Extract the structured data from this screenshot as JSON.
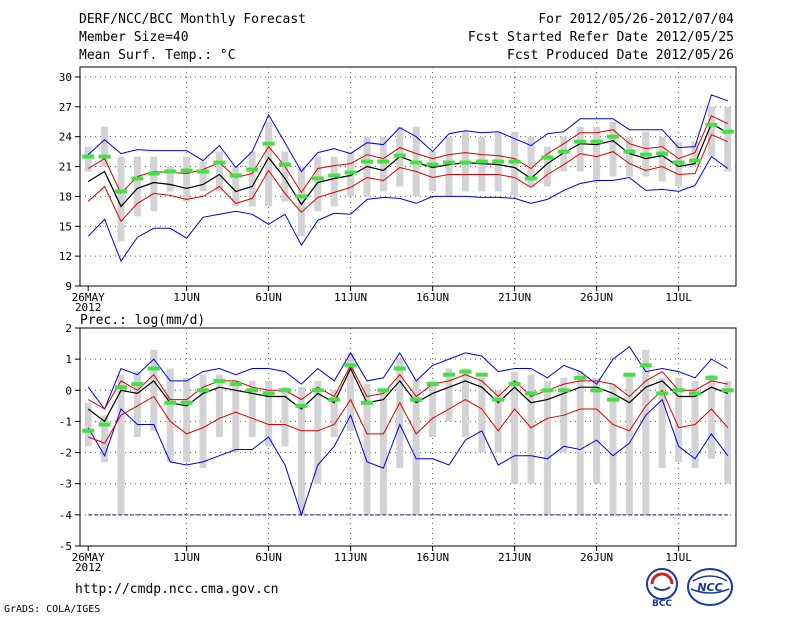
{
  "header": {
    "title": "DERF/NCC/BCC Monthly Forecast",
    "member_size": "Member Size=40",
    "variable": "Mean Surf. Temp.: °C",
    "period": "For 2012/05/26-2012/07/04",
    "started": "Fcst Started Refer Date 2012/05/25",
    "produced": "Fcst Produced Date 2012/05/26"
  },
  "footer": {
    "url": "http://cmdp.ncc.cma.gov.cn",
    "grads": "GrADS: COLA/IGES",
    "logo_left_text": "BCC",
    "logo_right_text": "NCC"
  },
  "colors": {
    "box": "#d3d3d6",
    "obs": "#44e044",
    "mean": "#000000",
    "std": "#dd0000",
    "range": "#0000ee",
    "grid": "#555555"
  },
  "chart_data": [
    {
      "type": "line",
      "title": "Mean Surf. Temp.: °C",
      "ylim": [
        9,
        31
      ],
      "yticks": [
        9,
        12,
        15,
        18,
        21,
        24,
        27,
        30
      ],
      "xlim": [
        0.5,
        40.5
      ],
      "x_tick_positions": [
        1,
        7,
        12,
        17,
        22,
        27,
        32,
        37
      ],
      "x_tick_labels": [
        "26MAY",
        "1JUN",
        "6JUN",
        "11JUN",
        "16JUN",
        "21JUN",
        "26JUN",
        "1JUL"
      ],
      "x_year_label": "2012",
      "series": [
        {
          "name": "mean",
          "values": [
            19.5,
            20.5,
            17,
            18.8,
            19.4,
            19.2,
            18.8,
            19.2,
            20.2,
            18.5,
            19,
            21.9,
            19.8,
            17.2,
            19.4,
            19.8,
            20.1,
            21,
            20.6,
            22,
            21.4,
            20.9,
            21.2,
            21.4,
            21.3,
            21.2,
            20.9,
            19.8,
            21.3,
            22.4,
            23.3,
            23.2,
            23.6,
            22.3,
            21.8,
            22.1,
            21,
            21.3,
            25.3,
            24.4
          ]
        },
        {
          "name": "mean_plus_std",
          "values": [
            20.8,
            21.8,
            18.3,
            20,
            20.5,
            20.4,
            20.3,
            20.7,
            21.4,
            19.9,
            20.3,
            23,
            21,
            18.4,
            20.8,
            21.1,
            21.3,
            22.2,
            21.8,
            22.9,
            22.3,
            21.8,
            22.2,
            22.4,
            22.2,
            22.1,
            21.8,
            20.8,
            22.3,
            23.3,
            24.4,
            24.4,
            24.7,
            23.3,
            22.8,
            23,
            21.8,
            22.4,
            26.1,
            25.3
          ]
        },
        {
          "name": "mean_minus_std",
          "values": [
            17.5,
            19,
            15.5,
            17.3,
            18.3,
            18.1,
            17.7,
            18,
            19,
            17.3,
            17.8,
            20.6,
            18.3,
            16.4,
            17.9,
            18.4,
            18.9,
            19.9,
            19.6,
            20.9,
            20.5,
            19.9,
            20.2,
            20.2,
            20.2,
            20.2,
            19.9,
            18.9,
            20.2,
            21.2,
            22.3,
            22,
            22.5,
            21.3,
            20.6,
            21,
            20.2,
            20.3,
            24.2,
            23.5
          ]
        },
        {
          "name": "max",
          "values": [
            22.2,
            23.7,
            22.3,
            22.7,
            22.6,
            22.6,
            22.6,
            21.6,
            23.1,
            20.9,
            22.5,
            26.2,
            23.4,
            20.5,
            22.4,
            22.8,
            22.3,
            23.4,
            23.2,
            24.9,
            24,
            22.5,
            24.3,
            24.6,
            24.4,
            24.5,
            23.8,
            23.1,
            24.3,
            24.5,
            25.8,
            25.8,
            25.8,
            24.7,
            24.7,
            24.7,
            22.9,
            23,
            28.2,
            27.6
          ]
        },
        {
          "name": "min",
          "values": [
            14,
            15.7,
            11.5,
            13.9,
            14.8,
            14.8,
            13.8,
            15.9,
            16.2,
            16.5,
            16.2,
            15.2,
            16.2,
            13.1,
            15.6,
            16.3,
            16.2,
            17.7,
            17.9,
            17.8,
            17.3,
            18,
            18,
            18,
            17.9,
            17.9,
            17.8,
            17.3,
            17.7,
            18.6,
            19.3,
            19.6,
            19.6,
            19.9,
            18.6,
            18.7,
            18.5,
            19.1,
            22,
            20.8
          ]
        },
        {
          "name": "observed",
          "values": [
            22,
            22,
            18.5,
            19.8,
            20.3,
            20.5,
            20.6,
            20.5,
            21.4,
            20.1,
            20.7,
            23.3,
            21.2,
            18,
            19.8,
            20.1,
            20.4,
            21.5,
            21.5,
            22.1,
            21.4,
            21.2,
            21.4,
            21.4,
            21.5,
            21.5,
            21.5,
            19.8,
            21.9,
            22.5,
            23.5,
            23.5,
            24,
            22.5,
            22.2,
            22.3,
            21.4,
            21.6,
            25.2,
            24.5
          ]
        }
      ],
      "box_ranges": [
        [
          20.5,
          23
        ],
        [
          21,
          25
        ],
        [
          13.5,
          22
        ],
        [
          16,
          22
        ],
        [
          16.5,
          22
        ],
        [
          18.5,
          21
        ],
        [
          17.5,
          22
        ],
        [
          18.5,
          21.5
        ],
        [
          18.5,
          22.5
        ],
        [
          17,
          21
        ],
        [
          17,
          22.5
        ],
        [
          17,
          25.5
        ],
        [
          17.5,
          22.5
        ],
        [
          14,
          21
        ],
        [
          16.5,
          22
        ],
        [
          17,
          22
        ],
        [
          18,
          22.5
        ],
        [
          18,
          24
        ],
        [
          18.5,
          24
        ],
        [
          19,
          25
        ],
        [
          18,
          25
        ],
        [
          18.5,
          22.5
        ],
        [
          18,
          24
        ],
        [
          18.5,
          24.5
        ],
        [
          18.5,
          24
        ],
        [
          18.5,
          24.5
        ],
        [
          18,
          24.5
        ],
        [
          19,
          24
        ],
        [
          19,
          23
        ],
        [
          20.5,
          24
        ],
        [
          20.5,
          25
        ],
        [
          19.5,
          25
        ],
        [
          20,
          25.5
        ],
        [
          20,
          24
        ],
        [
          20,
          24.5
        ],
        [
          19.5,
          24
        ],
        [
          19,
          23.5
        ],
        [
          21,
          23.5
        ],
        [
          22,
          27
        ],
        [
          20.5,
          27
        ]
      ]
    },
    {
      "type": "line",
      "title": "Prec.: log(mm/d)",
      "ylim": [
        -5,
        2
      ],
      "yticks": [
        -5,
        -4,
        -3,
        -2,
        -1,
        0,
        1,
        2
      ],
      "xlim": [
        0.5,
        40.5
      ],
      "x_tick_positions": [
        1,
        7,
        12,
        17,
        22,
        27,
        32,
        37
      ],
      "x_tick_labels": [
        "26MAY",
        "1JUN",
        "6JUN",
        "11JUN",
        "16JUN",
        "21JUN",
        "26JUN",
        "1JUL"
      ],
      "x_year_label": "2012",
      "reference_line": -4,
      "series": [
        {
          "name": "mean",
          "values": [
            -0.6,
            -1,
            0,
            -0.1,
            0.3,
            -0.4,
            -0.5,
            -0.1,
            0.1,
            0,
            -0.1,
            -0.2,
            -0.2,
            -0.6,
            -0.1,
            -0.4,
            0.7,
            -0.4,
            -0.3,
            0.3,
            -0.4,
            -0.1,
            0.1,
            0.3,
            0.1,
            -0.4,
            0.1,
            -0.4,
            -0.3,
            -0.1,
            0.1,
            0.1,
            -0.1,
            -0.4,
            0.1,
            0.3,
            -0.2,
            -0.2,
            0.1,
            -0.1
          ]
        },
        {
          "name": "mean_plus_std",
          "values": [
            -0.3,
            -0.6,
            0.3,
            0,
            0.5,
            -0.3,
            -0.3,
            0.1,
            0.3,
            0.3,
            0.1,
            0,
            0,
            -0.3,
            0.1,
            -0.2,
            0.8,
            -0.2,
            -0.1,
            0.5,
            -0.2,
            0.2,
            0.3,
            0.5,
            0.3,
            -0.2,
            0.3,
            -0.2,
            0,
            0.2,
            0.3,
            0.3,
            0.2,
            -0.2,
            0.3,
            0.6,
            0,
            0,
            0.3,
            0.2
          ]
        },
        {
          "name": "mean_minus_std",
          "values": [
            -1.5,
            -1.7,
            -0.8,
            -0.5,
            -0.2,
            -1,
            -1.4,
            -1.2,
            -0.9,
            -0.7,
            -0.9,
            -1.1,
            -1.1,
            -1.3,
            -1.3,
            -1.1,
            -0.3,
            -1.4,
            -1.4,
            -0.4,
            -1.4,
            -0.9,
            -0.6,
            -0.3,
            -0.6,
            -1.3,
            -0.6,
            -1.2,
            -0.9,
            -0.8,
            -0.6,
            -0.6,
            -1.1,
            -1.3,
            -0.5,
            0,
            -1.2,
            -1.1,
            -0.6,
            -1.2
          ]
        },
        {
          "name": "max",
          "values": [
            0.1,
            -0.6,
            0.7,
            0.5,
            1,
            0.3,
            0.3,
            0.6,
            0.7,
            0.5,
            0.7,
            0.7,
            0.6,
            0.2,
            0.7,
            0.3,
            1.2,
            0.3,
            0.4,
            1.2,
            0.3,
            0.8,
            1,
            1.2,
            1.1,
            0.6,
            0.7,
            0.7,
            0.4,
            0.8,
            0.6,
            0.2,
            1,
            1.4,
            0.6,
            0.7,
            0.6,
            0.4,
            1,
            0.7
          ]
        },
        {
          "name": "min",
          "values": [
            -1.2,
            -2.1,
            -0.6,
            -1.1,
            -1.1,
            -2.3,
            -2.4,
            -2.3,
            -2.1,
            -1.9,
            -1.9,
            -1.5,
            -2.4,
            -4,
            -2.4,
            -1.8,
            -0.8,
            -2.3,
            -2.5,
            -1.1,
            -2.2,
            -2.2,
            -2.4,
            -1.6,
            -1.3,
            -2.4,
            -2.1,
            -2.1,
            -2.2,
            -1.8,
            -1.9,
            -1.6,
            -2.1,
            -1.7,
            -0.8,
            -0.3,
            -1.8,
            -2.2,
            -1.4,
            -2.1
          ]
        },
        {
          "name": "observed",
          "values": [
            -1.3,
            -1.1,
            0.1,
            0.2,
            0.7,
            -0.4,
            -0.4,
            0,
            0.3,
            0.2,
            0,
            -0.1,
            0,
            -0.5,
            0,
            -0.3,
            0.8,
            -0.4,
            0,
            0.7,
            -0.3,
            0.2,
            0.5,
            0.6,
            0.5,
            -0.3,
            0.2,
            -0.1,
            0,
            0,
            0.4,
            0,
            -0.3,
            0.5,
            0.8,
            -0.1,
            0,
            -0.1,
            0.4,
            0
          ]
        }
      ],
      "box_ranges": [
        [
          -1.8,
          -0.4
        ],
        [
          -2.3,
          -0.8
        ],
        [
          -4,
          0.5
        ],
        [
          -1.5,
          0.6
        ],
        [
          -1.3,
          1.3
        ],
        [
          -2.3,
          0.7
        ],
        [
          -2.3,
          0.4
        ],
        [
          -2.5,
          0.5
        ],
        [
          -1.5,
          0.5
        ],
        [
          -2,
          0.3
        ],
        [
          -1.5,
          0.3
        ],
        [
          -1.8,
          0.3
        ],
        [
          -1.8,
          0.1
        ],
        [
          -4,
          0.1
        ],
        [
          -3,
          0.3
        ],
        [
          -1.5,
          0
        ],
        [
          -1.3,
          1.2
        ],
        [
          -4,
          0.2
        ],
        [
          -4,
          0
        ],
        [
          -2.5,
          1
        ],
        [
          -4,
          0.3
        ],
        [
          -1.5,
          0.3
        ],
        [
          -1,
          0.7
        ],
        [
          -1.5,
          0.7
        ],
        [
          -2,
          0.4
        ],
        [
          -2,
          0
        ],
        [
          -3,
          0.6
        ],
        [
          -3,
          0.5
        ],
        [
          -4,
          0.3
        ],
        [
          -2,
          0.4
        ],
        [
          -4,
          0.6
        ],
        [
          -3,
          0.4
        ],
        [
          -4,
          0.2
        ],
        [
          -4,
          0.5
        ],
        [
          -4,
          1.3
        ],
        [
          -2.5,
          0.4
        ],
        [
          -2.3,
          0.4
        ],
        [
          -2.5,
          0.3
        ],
        [
          -2.2,
          0.5
        ],
        [
          -3,
          0.3
        ]
      ]
    }
  ]
}
